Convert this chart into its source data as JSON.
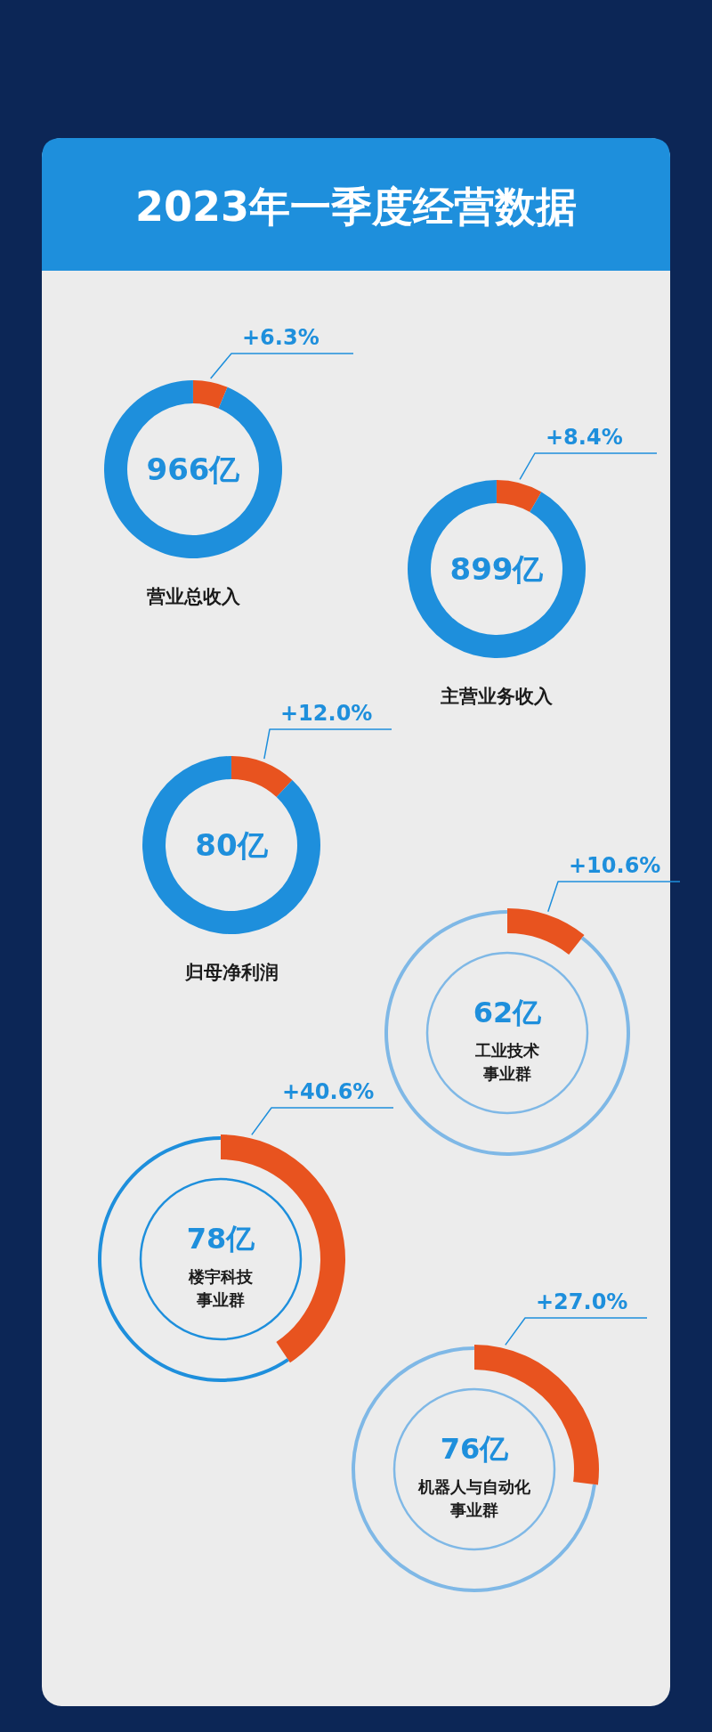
{
  "chart_data": [
    {
      "type": "other",
      "title": "2023年一季度经营数据"
    },
    {
      "type": "donut",
      "title": "营业总收入",
      "annotations": [
        "966亿"
      ],
      "categories": [
        null,
        null
      ],
      "values": [
        6.3,
        93.7
      ],
      "value_labels": [
        "+6.3%",
        null
      ],
      "colors": [
        "#e8531f",
        "#1e8fdc"
      ]
    },
    {
      "type": "donut",
      "title": "主营业务收入",
      "annotations": [
        "899亿"
      ],
      "categories": [
        null,
        null
      ],
      "values": [
        8.4,
        91.6
      ],
      "value_labels": [
        "+8.4%",
        null
      ],
      "colors": [
        "#e8531f",
        "#1e8fdc"
      ]
    },
    {
      "type": "donut",
      "title": "归母净利润",
      "annotations": [
        "80亿"
      ],
      "categories": [
        null,
        null
      ],
      "values": [
        12.0,
        88.0
      ],
      "value_labels": [
        "+12.0%",
        null
      ],
      "colors": [
        "#e8531f",
        "#1e8fdc"
      ]
    },
    {
      "type": "donut",
      "title": "工业技术事业群",
      "annotations": [
        "62亿"
      ],
      "categories": [
        null,
        null
      ],
      "values": [
        10.6,
        89.4
      ],
      "value_labels": [
        "+10.6%",
        null
      ],
      "colors": [
        "#e8531f",
        "#7fb8e6"
      ]
    },
    {
      "type": "donut",
      "title": "楼宇科技事业群",
      "annotations": [
        "78亿"
      ],
      "categories": [
        null,
        null
      ],
      "values": [
        40.6,
        59.4
      ],
      "value_labels": [
        "+40.6%",
        null
      ],
      "colors": [
        "#e8531f",
        "#1e8fdc"
      ]
    },
    {
      "type": "donut",
      "title": "机器人与自动化事业群",
      "annotations": [
        "76亿"
      ],
      "categories": [
        null,
        null
      ],
      "values": [
        27.0,
        73.0
      ],
      "value_labels": [
        "+27.0%",
        null
      ],
      "colors": [
        "#e8531f",
        "#7fb8e6"
      ]
    }
  ]
}
